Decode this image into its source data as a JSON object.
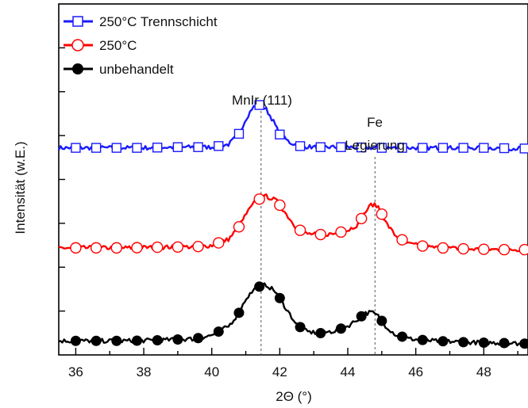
{
  "chart_data": {
    "type": "line",
    "title": "",
    "xlabel": "2Θ (°)",
    "ylabel": "Intensität (w.E.)",
    "xlim": [
      35.5,
      49.3
    ],
    "x_ticks": [
      "36",
      "38",
      "40",
      "42",
      "44",
      "46",
      "48"
    ],
    "y_ticks_labeled": false,
    "legend_position": "top-left",
    "series": [
      {
        "name": "250°C Trennschicht",
        "color": "#1a1aff",
        "marker": "open-square",
        "x": [
          35.5,
          36.0,
          37.0,
          38.0,
          39.0,
          40.0,
          40.5,
          40.8,
          41.0,
          41.2,
          41.4,
          41.6,
          41.8,
          42.0,
          42.3,
          42.6,
          43.0,
          44.0,
          45.0,
          46.0,
          47.0,
          48.0,
          49.3
        ],
        "values": [
          0.59,
          0.59,
          0.59,
          0.59,
          0.592,
          0.592,
          0.6,
          0.63,
          0.672,
          0.705,
          0.712,
          0.7,
          0.668,
          0.628,
          0.605,
          0.595,
          0.592,
          0.592,
          0.59,
          0.59,
          0.59,
          0.59,
          0.588
        ]
      },
      {
        "name": "250°C",
        "color": "#ff0000",
        "marker": "open-circle",
        "x": [
          35.5,
          36.5,
          37.5,
          38.5,
          39.5,
          40.0,
          40.5,
          40.8,
          41.0,
          41.3,
          41.6,
          41.9,
          42.2,
          42.5,
          42.8,
          43.2,
          43.6,
          44.0,
          44.3,
          44.5,
          44.7,
          44.9,
          45.1,
          45.4,
          45.8,
          46.5,
          47.5,
          48.5,
          49.3
        ],
        "values": [
          0.305,
          0.305,
          0.305,
          0.307,
          0.308,
          0.312,
          0.33,
          0.365,
          0.4,
          0.44,
          0.452,
          0.44,
          0.4,
          0.36,
          0.345,
          0.343,
          0.345,
          0.355,
          0.372,
          0.405,
          0.43,
          0.422,
          0.38,
          0.34,
          0.316,
          0.306,
          0.302,
          0.3,
          0.3
        ]
      },
      {
        "name": "unbehandelt",
        "color": "#000000",
        "marker": "filled-circle",
        "x": [
          35.5,
          36.5,
          37.5,
          38.5,
          39.5,
          40.0,
          40.5,
          40.8,
          41.0,
          41.3,
          41.6,
          41.9,
          42.2,
          42.5,
          42.8,
          43.2,
          43.6,
          44.0,
          44.3,
          44.5,
          44.7,
          44.9,
          45.1,
          45.4,
          45.8,
          46.5,
          47.5,
          48.5,
          49.3
        ],
        "values": [
          0.04,
          0.04,
          0.04,
          0.042,
          0.046,
          0.056,
          0.082,
          0.12,
          0.16,
          0.192,
          0.2,
          0.178,
          0.13,
          0.086,
          0.066,
          0.062,
          0.068,
          0.082,
          0.102,
          0.118,
          0.122,
          0.11,
          0.084,
          0.058,
          0.046,
          0.04,
          0.036,
          0.034,
          0.032
        ]
      }
    ],
    "reference_lines": [
      {
        "x": 41.45,
        "label": "MnIr (111)"
      },
      {
        "x": 44.8,
        "label": "Fe Legierung"
      }
    ],
    "annotations": [
      {
        "text": "MnIr (111)",
        "x": 41.45
      },
      {
        "text": "Fe",
        "x": 44.8
      },
      {
        "text": "Legierung",
        "x": 44.8
      }
    ]
  }
}
